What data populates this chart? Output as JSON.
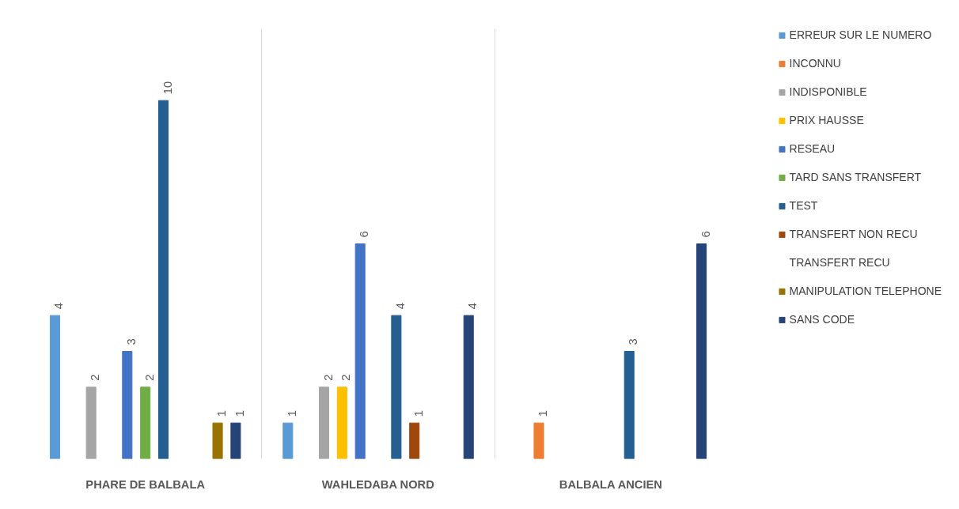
{
  "chart_data": {
    "type": "bar",
    "categories": [
      "PHARE DE BALBALA",
      "WAHLEDABA NORD",
      "BALBALA ANCIEN"
    ],
    "series": [
      {
        "name": "ERREUR SUR LE NUMERO",
        "color": "#5b9bd5",
        "values": [
          4,
          1,
          null
        ]
      },
      {
        "name": "INCONNU",
        "color": "#ed7d31",
        "values": [
          null,
          null,
          1
        ]
      },
      {
        "name": "INDISPONIBLE",
        "color": "#a5a5a5",
        "values": [
          2,
          2,
          null
        ]
      },
      {
        "name": "PRIX HAUSSE",
        "color": "#ffc000",
        "values": [
          null,
          2,
          null
        ]
      },
      {
        "name": "RESEAU",
        "color": "#4472c4",
        "values": [
          3,
          6,
          null
        ]
      },
      {
        "name": "TARD SANS TRANSFERT",
        "color": "#70ad47",
        "values": [
          2,
          null,
          null
        ]
      },
      {
        "name": "TEST",
        "color": "#255e91",
        "values": [
          10,
          4,
          3
        ]
      },
      {
        "name": "TRANSFERT NON RECU",
        "color": "#9e480e",
        "values": [
          null,
          1,
          null
        ]
      },
      {
        "name": "TRANSFERT RECU",
        "color": "#636363",
        "values": [
          null,
          null,
          null
        ]
      },
      {
        "name": "MANIPULATION TELEPHONE",
        "color": "#997300",
        "values": [
          1,
          null,
          null
        ]
      },
      {
        "name": "SANS CODE",
        "color": "#264478",
        "values": [
          1,
          4,
          6
        ]
      }
    ],
    "ylim": [
      0,
      12
    ],
    "tick_labels": "x",
    "grid": "x",
    "data_labels": true,
    "legend": "right"
  }
}
